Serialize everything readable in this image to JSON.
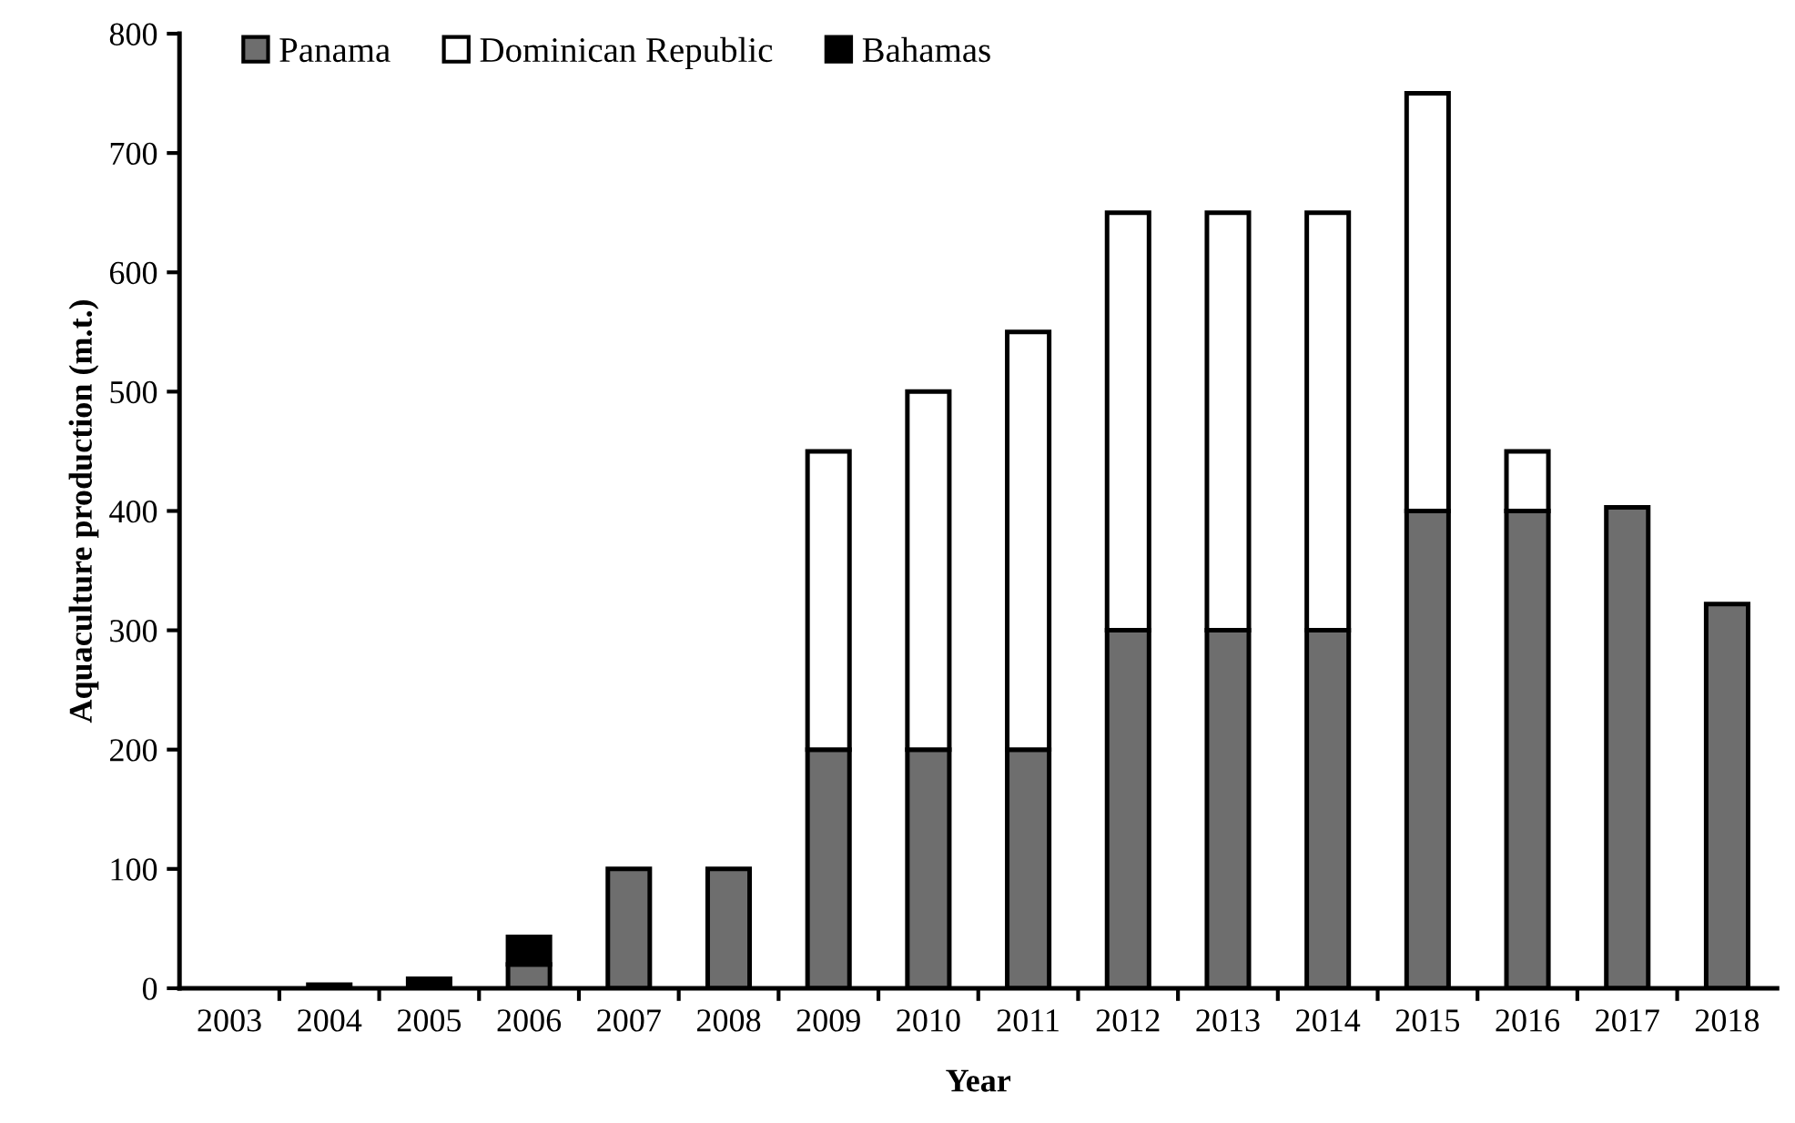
{
  "chart_data": {
    "type": "bar",
    "stacked": true,
    "xlabel": "Year",
    "ylabel": "Aquaculture production (m.t.)",
    "categories": [
      "2003",
      "2004",
      "2005",
      "2006",
      "2007",
      "2008",
      "2009",
      "2010",
      "2011",
      "2012",
      "2013",
      "2014",
      "2015",
      "2016",
      "2017",
      "2018"
    ],
    "series": [
      {
        "name": "Panama",
        "color": "#6e6e6e",
        "values": [
          0,
          0,
          0,
          20,
          100,
          100,
          200,
          200,
          200,
          300,
          300,
          300,
          400,
          400,
          403,
          322
        ]
      },
      {
        "name": "Dominican Republic",
        "color": "#ffffff",
        "values": [
          0,
          0,
          0,
          0,
          0,
          0,
          250,
          300,
          350,
          350,
          350,
          350,
          350,
          50,
          0,
          0
        ]
      },
      {
        "name": "Bahamas",
        "color": "#000000",
        "values": [
          0,
          3,
          8,
          23,
          0,
          0,
          0,
          0,
          0,
          0,
          0,
          0,
          0,
          0,
          0,
          0
        ]
      }
    ],
    "ylim": [
      0,
      800
    ],
    "yticks": [
      0,
      100,
      200,
      300,
      400,
      500,
      600,
      700,
      800
    ],
    "grid": false,
    "legend": "top left"
  }
}
